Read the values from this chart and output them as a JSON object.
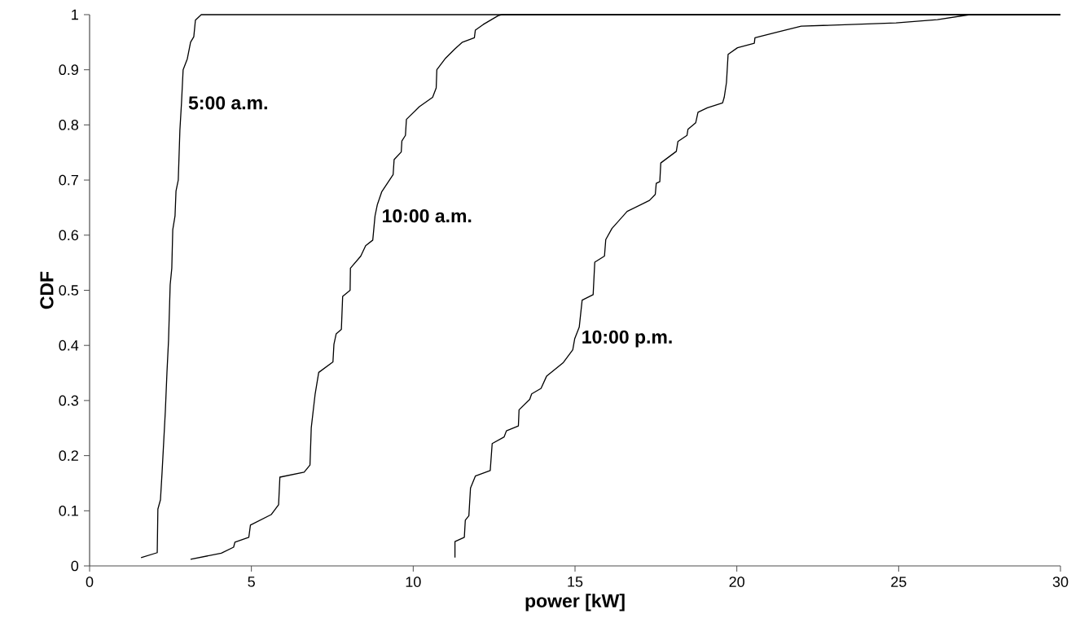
{
  "chart_data": {
    "type": "line",
    "xlabel": "power [kW]",
    "ylabel": "CDF",
    "xlim": [
      0,
      30
    ],
    "ylim": [
      0,
      1
    ],
    "xticks": [
      0,
      5,
      10,
      15,
      20,
      25,
      30
    ],
    "yticks": [
      0,
      0.1,
      0.2,
      0.3,
      0.4,
      0.5,
      0.6,
      0.7,
      0.8,
      0.9,
      1
    ],
    "grid": false,
    "legend": false,
    "marker": "none",
    "line_style": "solid",
    "series": [
      {
        "name": "5:00 a.m.",
        "color": "#000000",
        "x": [
          1.59,
          2.09,
          2.11,
          2.19,
          2.24,
          2.34,
          2.39,
          2.44,
          2.49,
          2.54,
          2.57,
          2.64,
          2.67,
          2.74,
          2.79,
          2.84,
          2.89,
          3.02,
          3.12,
          3.22,
          3.27,
          3.45,
          30
        ],
        "values": [
          0.015,
          0.024,
          0.103,
          0.12,
          0.17,
          0.28,
          0.35,
          0.41,
          0.51,
          0.54,
          0.61,
          0.635,
          0.68,
          0.7,
          0.79,
          0.84,
          0.9,
          0.92,
          0.95,
          0.96,
          0.99,
          1.0,
          1.0
        ]
      },
      {
        "name": "10:00 a.m.",
        "color": "#000000",
        "x": [
          3.12,
          4.07,
          4.45,
          4.49,
          4.92,
          4.97,
          5.61,
          5.84,
          5.88,
          6.63,
          6.81,
          6.85,
          6.97,
          7.08,
          7.52,
          7.55,
          7.62,
          7.78,
          7.82,
          8.05,
          8.06,
          8.38,
          8.53,
          8.75,
          8.82,
          8.89,
          9.03,
          9.38,
          9.41,
          9.63,
          9.65,
          9.76,
          9.79,
          10.19,
          10.6,
          10.71,
          10.73,
          11.0,
          11.29,
          11.52,
          11.89,
          11.92,
          12.16,
          12.62,
          12.75,
          30
        ],
        "values": [
          0.012,
          0.023,
          0.034,
          0.043,
          0.052,
          0.074,
          0.093,
          0.111,
          0.161,
          0.17,
          0.183,
          0.251,
          0.312,
          0.351,
          0.37,
          0.402,
          0.421,
          0.429,
          0.489,
          0.5,
          0.54,
          0.562,
          0.581,
          0.591,
          0.635,
          0.655,
          0.679,
          0.71,
          0.737,
          0.751,
          0.771,
          0.781,
          0.81,
          0.833,
          0.85,
          0.867,
          0.9,
          0.921,
          0.938,
          0.95,
          0.958,
          0.972,
          0.982,
          0.998,
          1.0,
          1.0
        ]
      },
      {
        "name": "10:00 p.m.",
        "color": "#000000",
        "x": [
          11.29,
          11.29,
          11.58,
          11.61,
          11.72,
          11.77,
          11.92,
          12.38,
          12.44,
          12.81,
          12.88,
          13.25,
          13.27,
          13.6,
          13.66,
          13.95,
          14.12,
          14.64,
          14.93,
          14.99,
          15.13,
          15.22,
          15.56,
          15.61,
          15.91,
          15.95,
          16.14,
          16.61,
          17.3,
          17.48,
          17.51,
          17.62,
          17.65,
          18.13,
          18.18,
          18.46,
          18.49,
          18.73,
          18.8,
          19.09,
          19.56,
          19.61,
          19.68,
          19.73,
          20.02,
          20.54,
          20.56,
          21.23,
          21.99,
          24.92,
          26.2,
          27.2,
          30
        ],
        "values": [
          0.015,
          0.044,
          0.052,
          0.083,
          0.091,
          0.141,
          0.163,
          0.173,
          0.222,
          0.234,
          0.245,
          0.254,
          0.283,
          0.302,
          0.312,
          0.322,
          0.344,
          0.369,
          0.392,
          0.412,
          0.433,
          0.482,
          0.492,
          0.551,
          0.562,
          0.592,
          0.612,
          0.643,
          0.663,
          0.674,
          0.694,
          0.697,
          0.731,
          0.752,
          0.77,
          0.781,
          0.792,
          0.804,
          0.823,
          0.831,
          0.84,
          0.85,
          0.877,
          0.928,
          0.94,
          0.948,
          0.958,
          0.968,
          0.979,
          0.985,
          0.991,
          1.0,
          1.0
        ]
      }
    ]
  }
}
